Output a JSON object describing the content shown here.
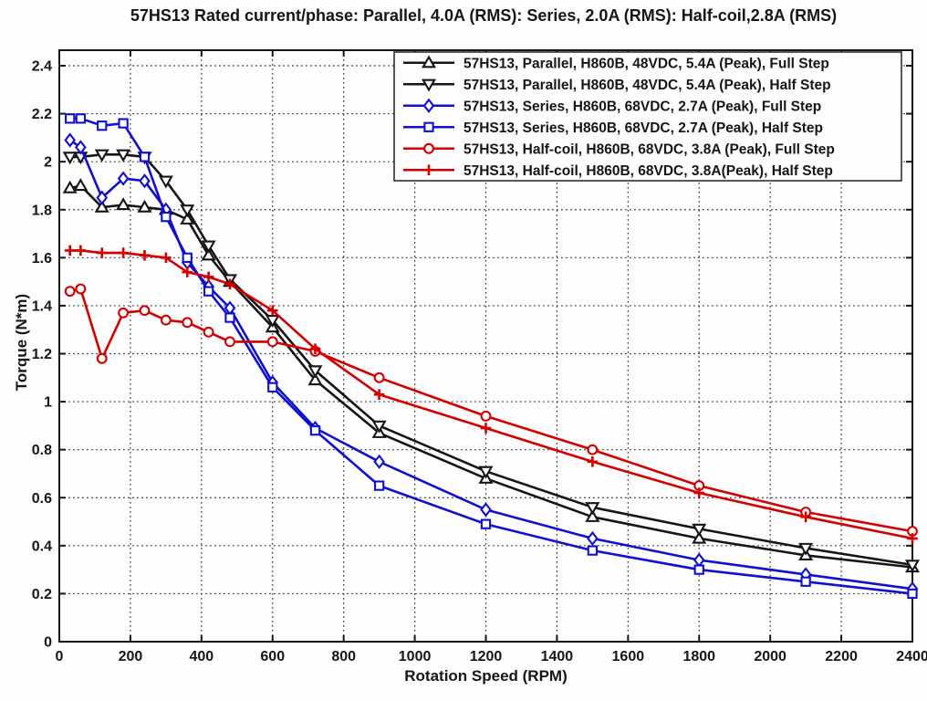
{
  "figure": {
    "title": "57HS13 Rated current/phase: Parallel, 4.0A (RMS): Series, 2.0A (RMS): Half-coil,2.8A (RMS)",
    "xlabel": "Rotation Speed (RPM)",
    "ylabel": "Torque (N*m)"
  },
  "chart_data": {
    "type": "line",
    "title": "57HS13 Rated current/phase: Parallel, 4.0A (RMS): Series, 2.0A (RMS): Half-coil,2.8A (RMS)",
    "xlabel": "Rotation Speed (RPM)",
    "ylabel": "Torque (N*m)",
    "xlim": [
      0,
      2400
    ],
    "ylim": [
      0,
      2.4
    ],
    "xticks": [
      0,
      200,
      400,
      600,
      800,
      1000,
      1200,
      1400,
      1600,
      1800,
      2000,
      2200,
      2400
    ],
    "yticks": [
      0,
      0.2,
      0.4,
      0.6,
      0.8,
      1,
      1.2,
      1.4,
      1.6,
      1.8,
      2,
      2.2,
      2.4
    ],
    "grid": true,
    "grid_style": "dotted",
    "legend_position": "upper-right-inside",
    "axis_color": "#161616",
    "grid_color": "#3a3a3a",
    "x": [
      30,
      60,
      120,
      180,
      240,
      300,
      360,
      420,
      480,
      600,
      720,
      900,
      1200,
      1500,
      1800,
      2100,
      2400
    ],
    "series": [
      {
        "name": "57HS13, Parallel, H860B, 48VDC, 5.4A (Peak), Full Step",
        "color": "#161616",
        "marker": "triangle-up",
        "values": [
          1.89,
          1.9,
          1.81,
          1.82,
          1.81,
          1.8,
          1.76,
          1.61,
          1.5,
          1.31,
          1.09,
          0.87,
          0.68,
          0.52,
          0.43,
          0.36,
          0.31
        ]
      },
      {
        "name": "57HS13, Parallel, H860B, 48VDC, 5.4A (Peak), Half Step",
        "color": "#161616",
        "marker": "triangle-down",
        "values": [
          2.02,
          2.02,
          2.03,
          2.03,
          2.02,
          1.92,
          1.8,
          1.65,
          1.51,
          1.34,
          1.13,
          0.9,
          0.71,
          0.56,
          0.47,
          0.39,
          0.32
        ]
      },
      {
        "name": "57HS13, Series, H860B, 68VDC, 2.7A (Peak), Full Step",
        "color": "#1010cf",
        "marker": "diamond",
        "values": [
          2.09,
          2.06,
          1.85,
          1.93,
          1.92,
          1.8,
          1.58,
          1.48,
          1.39,
          1.08,
          0.89,
          0.75,
          0.55,
          0.43,
          0.34,
          0.28,
          0.22
        ]
      },
      {
        "name": "57HS13, Series, H860B, 68VDC, 2.7A (Peak), Half Step",
        "color": "#1010cf",
        "marker": "square",
        "values": [
          2.18,
          2.18,
          2.15,
          2.16,
          2.02,
          1.77,
          1.6,
          1.46,
          1.35,
          1.06,
          0.88,
          0.65,
          0.49,
          0.38,
          0.3,
          0.25,
          0.2
        ]
      },
      {
        "name": "57HS13, Half-coil, H860B, 68VDC, 3.8A (Peak), Full Step",
        "color": "#d40000",
        "marker": "circle",
        "values": [
          1.46,
          1.47,
          1.18,
          1.37,
          1.38,
          1.34,
          1.33,
          1.29,
          1.25,
          1.25,
          1.21,
          1.1,
          0.94,
          0.8,
          0.65,
          0.54,
          0.46
        ]
      },
      {
        "name": "57HS13, Half-coil, H860B, 68VDC, 3.8A(Peak), Half Step",
        "color": "#d40000",
        "marker": "plus",
        "values": [
          1.63,
          1.63,
          1.62,
          1.62,
          1.61,
          1.6,
          1.54,
          1.52,
          1.49,
          1.38,
          1.22,
          1.03,
          0.89,
          0.75,
          0.62,
          0.52,
          0.43
        ]
      }
    ]
  }
}
